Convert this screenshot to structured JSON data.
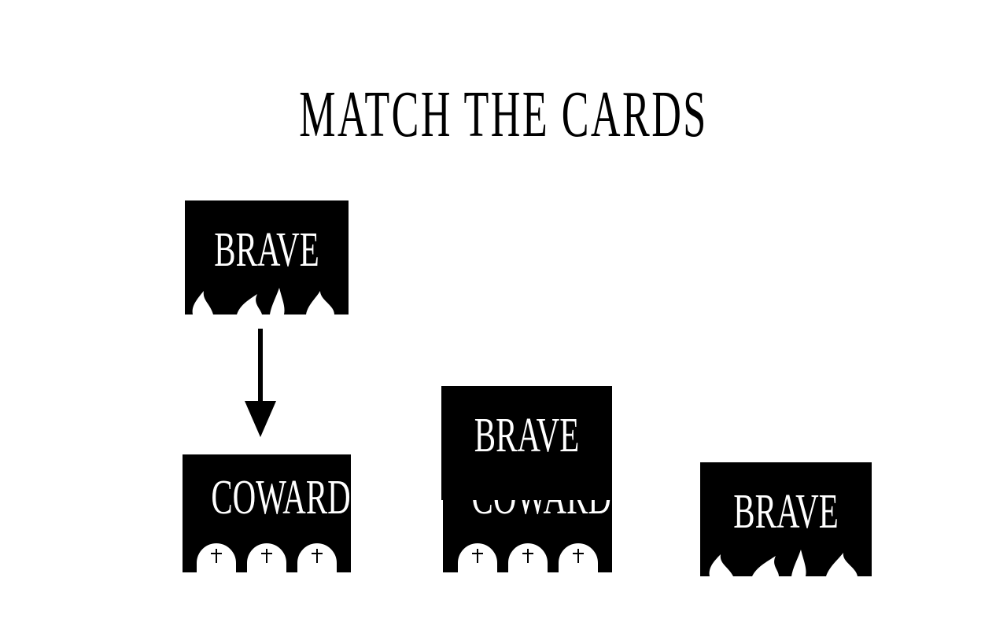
{
  "game": {
    "title": "MATCH THE CARDS",
    "cards": [
      {
        "id": "brave-source",
        "label": "BRAVE",
        "decoration": "flames-icon"
      },
      {
        "id": "coward-target",
        "label": "COWARD",
        "decoration": "tombstones-icon"
      },
      {
        "id": "stacked-back",
        "label": "COWARD",
        "decoration": "tombstones-icon"
      },
      {
        "id": "stacked-front",
        "label": "BRAVE",
        "decoration": "none"
      },
      {
        "id": "brave-right",
        "label": "BRAVE",
        "decoration": "flames-icon"
      }
    ],
    "arrow": "arrow-down-icon"
  },
  "colors": {
    "card": "#000000",
    "text_on_card": "#ffffff",
    "background": "#ffffff"
  }
}
